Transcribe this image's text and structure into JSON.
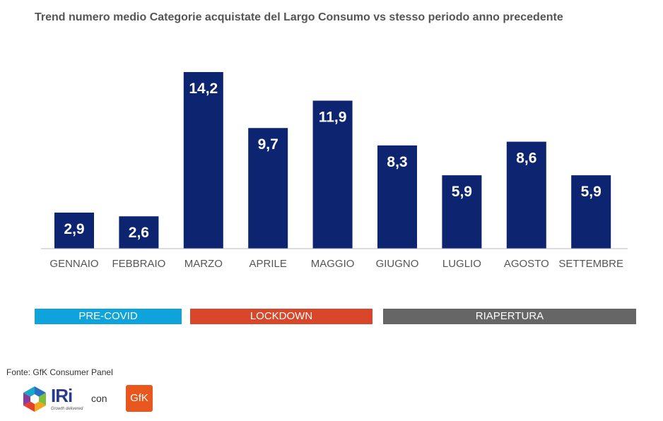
{
  "title": "Trend numero medio Categorie acquistate del Largo Consumo vs stesso periodo anno precedente",
  "chart_data": {
    "type": "bar",
    "title": "Trend numero medio Categorie acquistate del Largo Consumo vs stesso periodo anno precedente",
    "categories": [
      "GENNAIO",
      "FEBBRAIO",
      "MARZO",
      "APRILE",
      "MAGGIO",
      "GIUGNO",
      "LUGLIO",
      "AGOSTO",
      "SETTEMBRE"
    ],
    "values": [
      2.9,
      2.6,
      14.2,
      9.7,
      11.9,
      8.3,
      5.9,
      8.6,
      5.9
    ],
    "value_labels": [
      "2,9",
      "2,6",
      "14,2",
      "9,7",
      "11,9",
      "8,3",
      "5,9",
      "8,6",
      "5,9"
    ],
    "xlabel": "",
    "ylabel": "",
    "ylim": [
      0,
      14.2
    ],
    "grid": false,
    "bar_color": "#0d2471"
  },
  "periods": [
    {
      "label": "PRE-COVID",
      "color": "#0ea3db"
    },
    {
      "label": "LOCKDOWN",
      "color": "#d9472b"
    },
    {
      "label": "RIAPERTURA",
      "color": "#666666"
    }
  ],
  "source": "Fonte: GfK Consumer Panel",
  "logos": {
    "iri_text": "IRi",
    "iri_tagline": "Growth delivered",
    "connector": "con",
    "gfk_text": "GfK"
  }
}
